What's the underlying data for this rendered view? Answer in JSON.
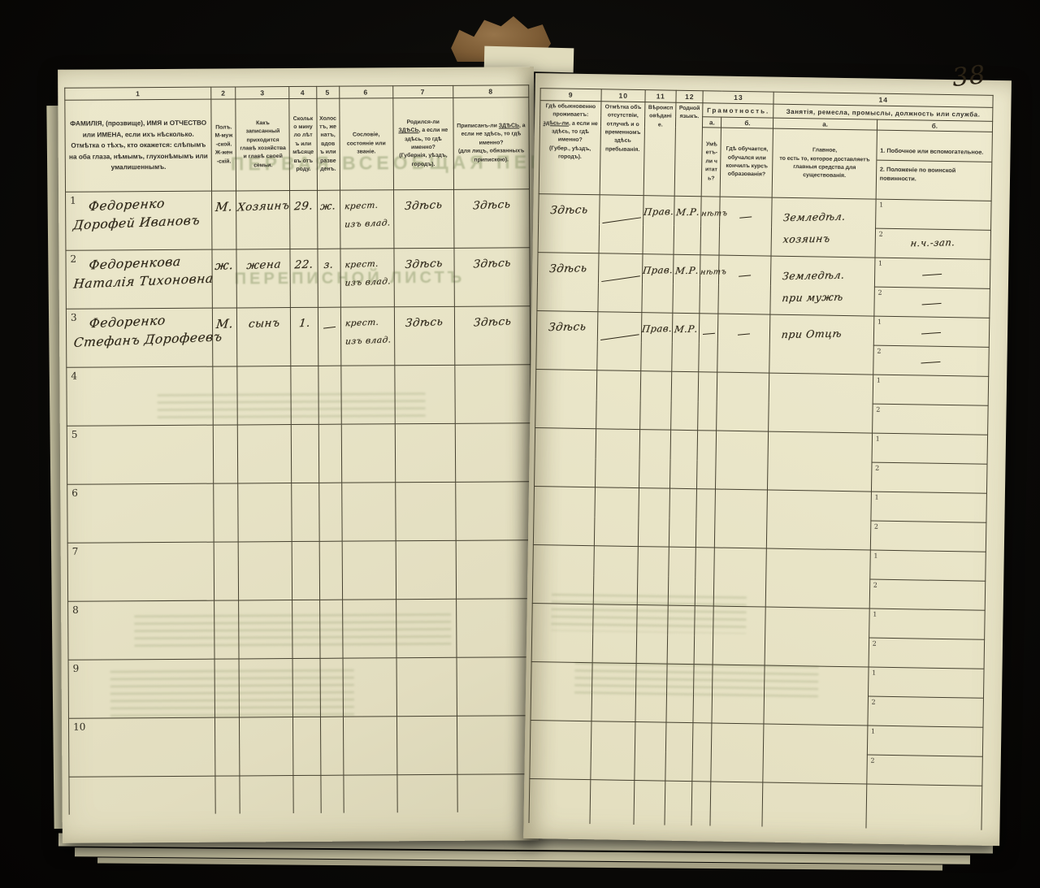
{
  "page_number": "38",
  "left": {
    "cols": [
      {
        "num": "1",
        "text": "ФАМИЛІЯ, (прозвище), ИМЯ и ОТЧЕСТВО или ИМЕНА, если ихъ нѣсколько.\nОтмѣтка о тѣхъ, кто окажется: слѣпымъ на оба глаза, нѣмымъ, глухонѣмымъ или умалишеннымъ."
      },
      {
        "num": "2",
        "text": "Полъ.\nМ-муж-ской.\nЖ-жен-скій."
      },
      {
        "num": "3",
        "text": "Какъ записанный приходится главѣ хозяйства и главѣ своей семьи."
      },
      {
        "num": "4",
        "text": "Сколько минуло лѣтъ или мѣсяцевъ отъ роду."
      },
      {
        "num": "5",
        "text": "Холостъ, женатъ, вдовъ или разведенъ."
      },
      {
        "num": "6",
        "text": "Сословіе, состояніе или званіе."
      },
      {
        "num": "7",
        "text": "Родился-ли ЗДѢСЬ, а если не здѣсь, то гдѣ именно?\n(Губернія, уѣздъ, городъ)."
      },
      {
        "num": "8",
        "text": "Приписанъ-ли ЗДѢСЬ, а если не здѣсь, то гдѣ именно?\n(для лицъ, обязанныхъ припискою)."
      }
    ]
  },
  "right": {
    "cols9_12": [
      {
        "num": "9",
        "text": "Гдѣ обыкновенно проживаетъ: здѣсь-ли, а если не здѣсь, то гдѣ именно?\n(Губер., уѣздъ, городъ)."
      },
      {
        "num": "10",
        "text": "Отмѣтка объ отсутствіи, отлучкѣ и о временномъ здѣсь пребыванія."
      },
      {
        "num": "11",
        "text": "Вѣроисповѣданіе."
      },
      {
        "num": "12",
        "text": "Родной языкъ."
      }
    ],
    "col13": {
      "num": "13",
      "title": "Грамотность.",
      "a": {
        "letter": "а.",
        "text": "Умѣетъ-ли читать?"
      },
      "b": {
        "letter": "б.",
        "text": "Гдѣ обучается, обучался или кончилъ курсъ образованія?"
      }
    },
    "col14": {
      "num": "14",
      "title": "Занятія, ремесла, промыслы, должность или служба.",
      "a": {
        "letter": "а.",
        "text": "Главное,\nто есть то, которое доставляетъ главныя средства для существованія."
      },
      "b": {
        "letter": "б.",
        "line1": "1. Побочное или вспомогательное.",
        "line2": "2. Положеніе по воинской повинности."
      }
    },
    "sub_row_labels": [
      "1",
      "2"
    ]
  },
  "bleedthrough": {
    "line1": "ПЕРВАЯ ВСЕОБЩАЯ ПЕРЕ",
    "line2": "ПЕРЕПИСНОЙ ЛИСТЪ"
  },
  "rows": [
    {
      "num": "1",
      "name": [
        "Федоренко",
        "Дорофей Ивановъ"
      ],
      "sex": "М.",
      "relation": "Хозяинъ",
      "age": "29.",
      "marital": "ж.",
      "estate": [
        "крест.",
        "изъ влад."
      ],
      "born": "Здѣсь",
      "registered": "Здѣсь",
      "lives": "Здѣсь",
      "absence": "—",
      "religion": "Прав.",
      "language": "М.Р.",
      "read": "нѣтъ",
      "education": "—",
      "occupation": [
        "Земледѣл.",
        "хозяинъ"
      ],
      "side1": "",
      "side2": "н.ч.-зап."
    },
    {
      "num": "2",
      "name": [
        "Федоренкова",
        "Наталія Тихоновна"
      ],
      "sex": "ж.",
      "relation": "жена",
      "age": "22.",
      "marital": "з.",
      "estate": [
        "крест.",
        "изъ влад."
      ],
      "born": "Здѣсь",
      "registered": "Здѣсь",
      "lives": "Здѣсь",
      "absence": "—",
      "religion": "Прав.",
      "language": "М.Р.",
      "read": "нѣтъ",
      "education": "—",
      "occupation": [
        "Земледѣл.",
        "при мужѣ"
      ],
      "side1": "—",
      "side2": "—"
    },
    {
      "num": "3",
      "name": [
        "Федоренко",
        "Стефанъ Дорофеевъ"
      ],
      "sex": "М.",
      "relation": "сынъ",
      "age": "1.",
      "marital": "—",
      "estate": [
        "крест.",
        "изъ влад."
      ],
      "born": "Здѣсь",
      "registered": "Здѣсь",
      "lives": "Здѣсь",
      "absence": "—",
      "religion": "Прав.",
      "language": "М.Р.",
      "read": "—",
      "education": "—",
      "occupation": [
        "при Отцѣ"
      ],
      "side1": "—",
      "side2": "—"
    },
    {
      "num": "4",
      "name": [],
      "sex": "",
      "relation": "",
      "age": "",
      "marital": "",
      "estate": [],
      "born": "",
      "registered": "",
      "lives": "",
      "absence": "",
      "religion": "",
      "language": "",
      "read": "",
      "education": "",
      "occupation": [],
      "side1": "",
      "side2": ""
    },
    {
      "num": "5",
      "name": [],
      "sex": "",
      "relation": "",
      "age": "",
      "marital": "",
      "estate": [],
      "born": "",
      "registered": "",
      "lives": "",
      "absence": "",
      "religion": "",
      "language": "",
      "read": "",
      "education": "",
      "occupation": [],
      "side1": "",
      "side2": ""
    },
    {
      "num": "6",
      "name": [],
      "sex": "",
      "relation": "",
      "age": "",
      "marital": "",
      "estate": [],
      "born": "",
      "registered": "",
      "lives": "",
      "absence": "",
      "religion": "",
      "language": "",
      "read": "",
      "education": "",
      "occupation": [],
      "side1": "",
      "side2": ""
    },
    {
      "num": "7",
      "name": [],
      "sex": "",
      "relation": "",
      "age": "",
      "marital": "",
      "estate": [],
      "born": "",
      "registered": "",
      "lives": "",
      "absence": "",
      "religion": "",
      "language": "",
      "read": "",
      "education": "",
      "occupation": [],
      "side1": "",
      "side2": ""
    },
    {
      "num": "8",
      "name": [],
      "sex": "",
      "relation": "",
      "age": "",
      "marital": "",
      "estate": [],
      "born": "",
      "registered": "",
      "lives": "",
      "absence": "",
      "religion": "",
      "language": "",
      "read": "",
      "education": "",
      "occupation": [],
      "side1": "",
      "side2": ""
    },
    {
      "num": "9",
      "name": [],
      "sex": "",
      "relation": "",
      "age": "",
      "marital": "",
      "estate": [],
      "born": "",
      "registered": "",
      "lives": "",
      "absence": "",
      "religion": "",
      "language": "",
      "read": "",
      "education": "",
      "occupation": [],
      "side1": "",
      "side2": ""
    },
    {
      "num": "10",
      "name": [],
      "sex": "",
      "relation": "",
      "age": "",
      "marital": "",
      "estate": [],
      "born": "",
      "registered": "",
      "lives": "",
      "absence": "",
      "religion": "",
      "language": "",
      "read": "",
      "education": "",
      "occupation": [],
      "side1": "",
      "side2": ""
    }
  ]
}
